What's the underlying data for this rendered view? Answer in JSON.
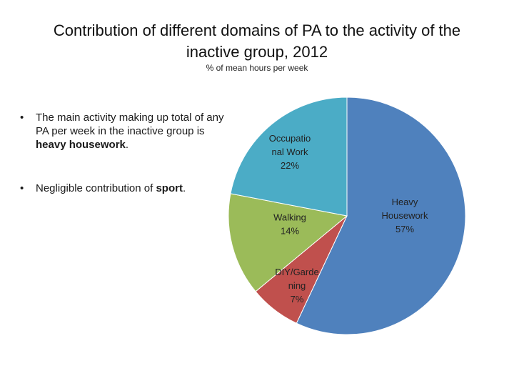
{
  "slide": {
    "title_line1": "Contribution of different domains of PA to the activity of the",
    "title_line2": "inactive group, 2012",
    "subtitle": "% of mean hours per week",
    "bullets": [
      {
        "prefix": "The main activity making up total of any PA per week in the inactive group is ",
        "bold": "heavy housework",
        "suffix": "."
      },
      {
        "prefix": "Negligible contribution of ",
        "bold": "sport",
        "suffix": "."
      }
    ]
  },
  "chart_data": {
    "type": "pie",
    "title": "Contribution of different domains of PA to the activity of the inactive group, 2012",
    "subtitle": "% of mean hours per week",
    "slices": [
      {
        "label_lines": [
          "Heavy",
          "Housework"
        ],
        "value": 57,
        "value_label": "57%",
        "color": "#4f81bd"
      },
      {
        "label_lines": [
          "DIY/Garde",
          "ning"
        ],
        "value": 7,
        "value_label": "7%",
        "color": "#c0504d"
      },
      {
        "label_lines": [
          "Walking"
        ],
        "value": 14,
        "value_label": "14%",
        "color": "#9bbb59"
      },
      {
        "label_lines": [
          "Occupatio",
          "nal Work"
        ],
        "value": 22,
        "value_label": "22%",
        "color": "#4bacc6"
      }
    ]
  }
}
